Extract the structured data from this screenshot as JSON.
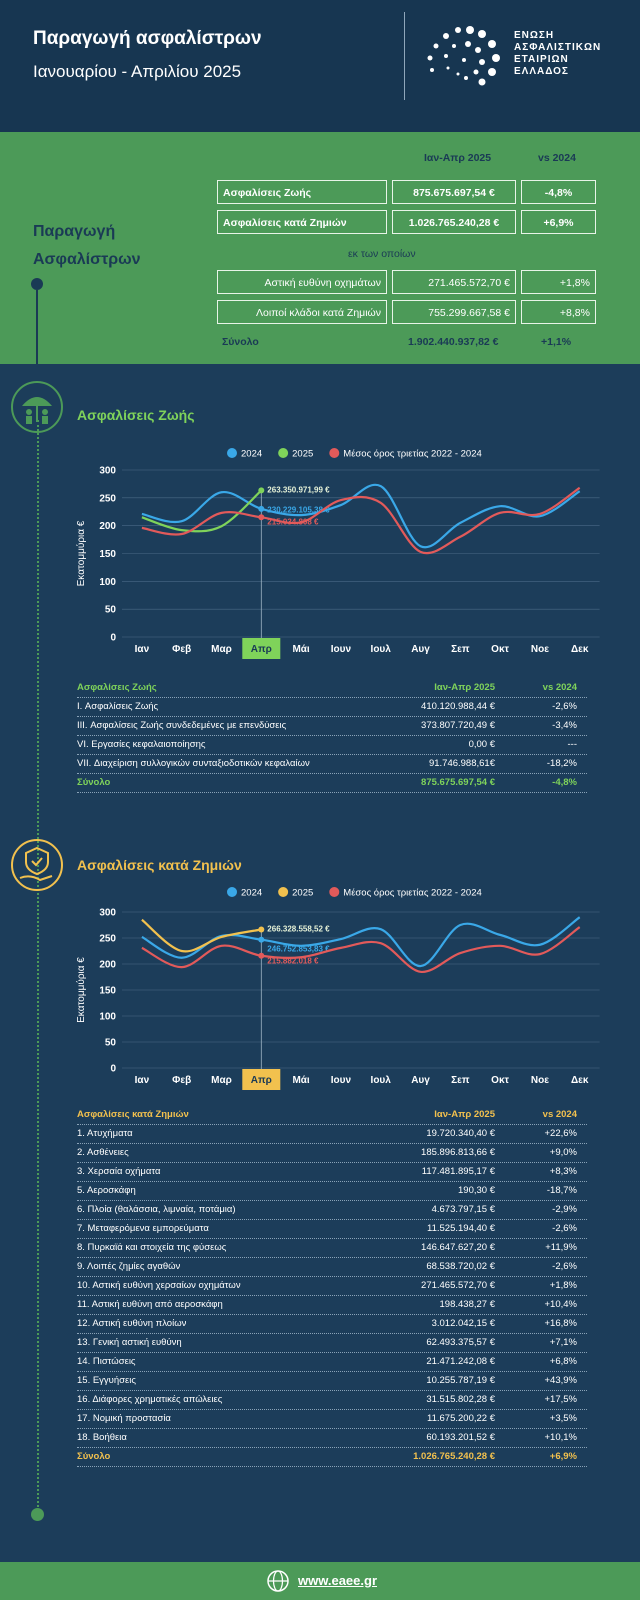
{
  "header": {
    "title": "Παραγωγή ασφαλίστρων",
    "subtitle": "Ιανουαρίου - Απριλίου 2025",
    "logo_lines": [
      "ΕΝΩΣΗ",
      "ΑΣΦΑΛΙΣΤΙΚΩΝ",
      "ΕΤΑΙΡΙΩΝ",
      "ΕΛΛΑΔΟΣ"
    ]
  },
  "summary": {
    "label": "Παραγωγή Ασφαλίστρων",
    "columns": [
      "Ιαν-Απρ 2025",
      "vs 2024"
    ],
    "rows": [
      [
        "Ασφαλίσεις Ζωής",
        "875.675.697,54 €",
        "-4,8%"
      ],
      [
        "Ασφαλίσεις κατά Ζημιών",
        "1.026.765.240,28 €",
        "+6,9%"
      ]
    ],
    "of_which": "εκ των οποίων",
    "sub_rows": [
      [
        "Αστική ευθύνη οχημάτων",
        "271.465.572,70 €",
        "+1,8%"
      ],
      [
        "Λοιποί κλάδοι κατά Ζημιών",
        "755.299.667,58 €",
        "+8,8%"
      ]
    ],
    "total": [
      "Σύνολο",
      "1.902.440.937,82 €",
      "+1,1%"
    ]
  },
  "life": {
    "title": "Ασφαλίσεις Ζωής",
    "table": {
      "columns": [
        "Ασφαλίσεις Ζωής",
        "Ιαν-Απρ 2025",
        "vs 2024"
      ],
      "rows": [
        [
          "I. Ασφαλίσεις  Ζωής",
          "410.120.988,44 €",
          "-2,6%"
        ],
        [
          "III. Ασφαλίσεις  Ζωής  συνδεδεμένες με επενδύσεις",
          "373.807.720,49 €",
          "-3,4%"
        ],
        [
          "VI. Εργασίες κεφαλαιοποίησης",
          "0,00 €",
          "---"
        ],
        [
          "VII. Διαχείριση συλλογικών συνταξιοδοτικών κεφαλαίων",
          "91.746.988,61€",
          "-18,2%"
        ]
      ],
      "total": [
        "Σύνολο",
        "875.675.697,54 €",
        "-4,8%"
      ]
    }
  },
  "nonlife": {
    "title": "Ασφαλίσεις κατά Ζημιών",
    "table": {
      "columns": [
        "Ασφαλίσεις κατά Ζημιών",
        "Ιαν-Απρ 2025",
        "vs 2024"
      ],
      "rows": [
        [
          "1. Ατυχήματα",
          "19.720.340,40 €",
          "+22,6%"
        ],
        [
          "2. Ασθένειες",
          "185.896.813,66 €",
          "+9,0%"
        ],
        [
          "3. Χερσαία οχήματα",
          "117.481.895,17 €",
          "+8,3%"
        ],
        [
          "5. Αεροσκάφη",
          "190,30 €",
          "-18,7%"
        ],
        [
          "6. Πλοία (θαλάσσια, λιμναία, ποτάμια)",
          "4.673.797,15 €",
          "-2,9%"
        ],
        [
          "7. Μεταφερόμενα εμπορεύματα",
          "11.525.194,40 €",
          "-2,6%"
        ],
        [
          "8. Πυρκαϊά και στοιχεία της φύσεως",
          "146.647.627,20 €",
          "+11,9%"
        ],
        [
          "9. Λοιπές ζημίες αγαθών",
          "68.538.720,02 €",
          "-2,6%"
        ],
        [
          "10. Αστική ευθύνη χερσαίων οχημάτων",
          "271.465.572,70 €",
          "+1,8%"
        ],
        [
          "11. Αστική ευθύνη από αεροσκάφη",
          "198.438,27 €",
          "+10,4%"
        ],
        [
          "12. Αστική ευθύνη πλοίων",
          "3.012.042,15 €",
          "+16,8%"
        ],
        [
          "13. Γενική αστική ευθύνη",
          "62.493.375,57 €",
          "+7,1%"
        ],
        [
          "14. Πιστώσεις",
          "21.471.242,08 €",
          "+6,8%"
        ],
        [
          "15. Εγγυήσεις",
          "10.255.787,19 €",
          "+43,9%"
        ],
        [
          "16. Διάφορες χρηματικές απώλειες",
          "31.515.802,28 €",
          "+17,5%"
        ],
        [
          "17. Νομική προστασία",
          "11.675.200,22 €",
          "+3,5%"
        ],
        [
          "18. Βοήθεια",
          "60.193.201,52 €",
          "+10,1%"
        ]
      ],
      "total": [
        "Σύνολο",
        "1.026.765.240,28 €",
        "+6,9%"
      ]
    }
  },
  "chart_data": [
    {
      "type": "line",
      "ylabel": "Εκατομμύρια €",
      "categories": [
        "Ιαν",
        "Φεβ",
        "Μαρ",
        "Απρ",
        "Μάι",
        "Ιουν",
        "Ιουλ",
        "Αυγ",
        "Σεπ",
        "Οκτ",
        "Νοε",
        "Δεκ"
      ],
      "ylim": [
        0,
        300
      ],
      "yticks": [
        0,
        50,
        100,
        150,
        200,
        250,
        300
      ],
      "series": [
        {
          "name": "2024",
          "color": "#3aa8e8",
          "values": [
            221,
            208,
            260,
            230.22910538,
            219,
            237,
            271,
            163,
            205,
            235,
            217,
            262
          ],
          "value_labels": [
            null,
            null,
            null,
            "230.229.105,38 €",
            null,
            null,
            null,
            null,
            null,
            null,
            null,
            null
          ]
        },
        {
          "name": "2025",
          "color": "#7fd35a",
          "values": [
            215,
            192,
            199,
            263.35097199,
            null,
            null,
            null,
            null,
            null,
            null,
            null,
            null
          ],
          "value_labels": [
            null,
            null,
            null,
            "263.350.971,99 €",
            null,
            null,
            null,
            null,
            null,
            null,
            null,
            null
          ]
        },
        {
          "name": "Μέσος όρος τριετίας 2022 - 2024",
          "color": "#e25a5a",
          "values": [
            196,
            185,
            223,
            215.034808,
            206,
            246,
            241,
            153,
            180,
            223,
            221,
            268
          ],
          "value_labels": [
            null,
            null,
            null,
            "215.034.808 €",
            null,
            null,
            null,
            null,
            null,
            null,
            null,
            null
          ]
        }
      ]
    },
    {
      "type": "line",
      "ylabel": "Εκατομμύρια €",
      "categories": [
        "Ιαν",
        "Φεβ",
        "Μαρ",
        "Απρ",
        "Μάι",
        "Ιουν",
        "Ιουλ",
        "Αυγ",
        "Σεπ",
        "Οκτ",
        "Νοε",
        "Δεκ"
      ],
      "ylim": [
        0,
        300
      ],
      "yticks": [
        0,
        50,
        100,
        150,
        200,
        250,
        300
      ],
      "series": [
        {
          "name": "2024",
          "color": "#3aa8e8",
          "values": [
            252,
            212,
            254,
            246.75285383,
            235,
            248,
            267,
            196,
            275,
            256,
            237,
            290
          ],
          "value_labels": [
            null,
            null,
            null,
            "246.752.853,83 €",
            null,
            null,
            null,
            null,
            null,
            null,
            null,
            null
          ]
        },
        {
          "name": "2025",
          "color": "#f2c14e",
          "values": [
            285,
            225,
            252,
            266.32855852,
            null,
            null,
            null,
            null,
            null,
            null,
            null,
            null
          ],
          "value_labels": [
            null,
            null,
            null,
            "266.328.558,52 €",
            null,
            null,
            null,
            null,
            null,
            null,
            null,
            null
          ]
        },
        {
          "name": "Μέσος όρος τριετίας 2022 - 2024",
          "color": "#e25a5a",
          "values": [
            231,
            194,
            235,
            215.882018,
            213,
            231,
            240,
            185,
            221,
            235,
            219,
            271
          ],
          "value_labels": [
            null,
            null,
            null,
            "215.882.018 €",
            null,
            null,
            null,
            null,
            null,
            null,
            null,
            null
          ]
        }
      ]
    }
  ],
  "footer": {
    "url": "www.eaee.gr"
  }
}
